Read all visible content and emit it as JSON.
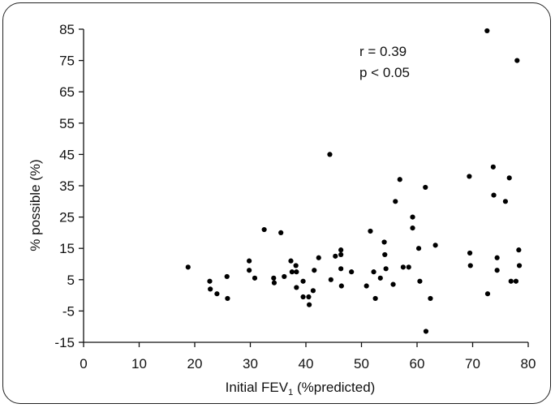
{
  "chart_data": {
    "type": "scatter",
    "title": "",
    "xlabel": "Initial FEV",
    "xlabel_subscript": "1",
    "xlabel_suffix": " (%predicted)",
    "ylabel": "% possible (%)",
    "xlim": [
      0,
      80
    ],
    "ylim": [
      -15,
      85
    ],
    "x_ticks": [
      0,
      10,
      20,
      30,
      40,
      50,
      60,
      70,
      80
    ],
    "y_ticks": [
      -15,
      -5,
      5,
      15,
      25,
      35,
      45,
      55,
      65,
      75,
      85
    ],
    "grid": false,
    "annotations": [
      "r = 0.39",
      "p < 0.05"
    ],
    "points": [
      {
        "x": 18.8,
        "y": 9
      },
      {
        "x": 22.7,
        "y": 4.5
      },
      {
        "x": 22.8,
        "y": 2
      },
      {
        "x": 24.0,
        "y": 0.5
      },
      {
        "x": 25.8,
        "y": 6
      },
      {
        "x": 25.9,
        "y": -1
      },
      {
        "x": 29.8,
        "y": 11
      },
      {
        "x": 29.8,
        "y": 8
      },
      {
        "x": 30.8,
        "y": 5.5
      },
      {
        "x": 32.5,
        "y": 21
      },
      {
        "x": 34.2,
        "y": 5.5
      },
      {
        "x": 34.3,
        "y": 4
      },
      {
        "x": 35.5,
        "y": 20
      },
      {
        "x": 36.1,
        "y": 6
      },
      {
        "x": 37.3,
        "y": 11
      },
      {
        "x": 37.5,
        "y": 7.5
      },
      {
        "x": 38.2,
        "y": 9.5
      },
      {
        "x": 38.3,
        "y": 7.5
      },
      {
        "x": 38.3,
        "y": 2.5
      },
      {
        "x": 39.5,
        "y": 4.5
      },
      {
        "x": 39.5,
        "y": -0.5
      },
      {
        "x": 40.5,
        "y": -0.5
      },
      {
        "x": 40.6,
        "y": -3
      },
      {
        "x": 41.3,
        "y": 1.5
      },
      {
        "x": 41.5,
        "y": 8
      },
      {
        "x": 42.3,
        "y": 12
      },
      {
        "x": 44.3,
        "y": 45
      },
      {
        "x": 44.5,
        "y": 5
      },
      {
        "x": 45.3,
        "y": 12.5
      },
      {
        "x": 46.3,
        "y": 14.5
      },
      {
        "x": 46.3,
        "y": 13
      },
      {
        "x": 46.3,
        "y": 8.5
      },
      {
        "x": 46.4,
        "y": 3
      },
      {
        "x": 48.2,
        "y": 7.5
      },
      {
        "x": 50.9,
        "y": 3
      },
      {
        "x": 51.6,
        "y": 20.5
      },
      {
        "x": 52.2,
        "y": 7.5
      },
      {
        "x": 52.5,
        "y": -1
      },
      {
        "x": 53.4,
        "y": 5.5
      },
      {
        "x": 54.1,
        "y": 17
      },
      {
        "x": 54.2,
        "y": 13
      },
      {
        "x": 54.4,
        "y": 8.5
      },
      {
        "x": 55.7,
        "y": 3.5
      },
      {
        "x": 56.1,
        "y": 30
      },
      {
        "x": 56.9,
        "y": 37
      },
      {
        "x": 57.5,
        "y": 9
      },
      {
        "x": 58.5,
        "y": 9
      },
      {
        "x": 59.2,
        "y": 25
      },
      {
        "x": 59.2,
        "y": 21.5
      },
      {
        "x": 60.3,
        "y": 15
      },
      {
        "x": 60.5,
        "y": 4.5
      },
      {
        "x": 61.5,
        "y": 34.5
      },
      {
        "x": 61.6,
        "y": -11.5
      },
      {
        "x": 62.4,
        "y": -1
      },
      {
        "x": 63.3,
        "y": 16
      },
      {
        "x": 69.4,
        "y": 38
      },
      {
        "x": 69.5,
        "y": 13.5
      },
      {
        "x": 69.6,
        "y": 9.5
      },
      {
        "x": 72.6,
        "y": 84.5
      },
      {
        "x": 72.7,
        "y": 0.5
      },
      {
        "x": 73.7,
        "y": 41
      },
      {
        "x": 73.8,
        "y": 32
      },
      {
        "x": 74.4,
        "y": 12
      },
      {
        "x": 74.4,
        "y": 8
      },
      {
        "x": 75.9,
        "y": 30
      },
      {
        "x": 76.6,
        "y": 37.5
      },
      {
        "x": 76.9,
        "y": 4.5
      },
      {
        "x": 77.8,
        "y": 4.5
      },
      {
        "x": 78.0,
        "y": 75
      },
      {
        "x": 78.3,
        "y": 14.5
      },
      {
        "x": 78.4,
        "y": 9.5
      }
    ]
  }
}
